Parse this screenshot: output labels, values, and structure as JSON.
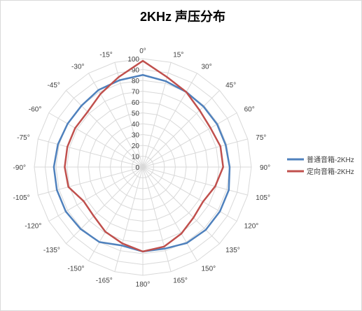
{
  "chart_data": {
    "type": "radar",
    "title": "2KHz 声压分布",
    "theta_labels": [
      "0°",
      "15°",
      "30°",
      "45°",
      "60°",
      "75°",
      "90°",
      "105°",
      "120°",
      "135°",
      "150°",
      "165°",
      "180°",
      "-165°",
      "-150°",
      "-135°",
      "-120°",
      "-105°",
      "-90°",
      "-75°",
      "-60°",
      "-45°",
      "-30°",
      "-15°"
    ],
    "r_ticks": [
      "0",
      "10",
      "20",
      "30",
      "40",
      "50",
      "60",
      "70",
      "80",
      "90",
      "100"
    ],
    "rlim": [
      0,
      100
    ],
    "grid": true,
    "legend_position": "right",
    "series": [
      {
        "name": "普通音箱-2KHz",
        "color": "#4f81bd",
        "values": [
          85,
          82,
          80,
          79,
          79,
          79,
          80,
          82,
          82,
          82,
          81,
          78,
          78,
          75,
          80,
          81,
          82,
          82,
          82,
          81,
          80,
          80,
          82,
          83
        ]
      },
      {
        "name": "定向音箱-2KHz",
        "color": "#c0504d",
        "values": [
          98,
          86,
          80,
          74,
          72,
          74,
          74,
          69,
          64,
          66,
          71,
          76,
          78,
          73,
          69,
          64,
          63,
          71,
          72,
          72,
          72,
          72,
          78,
          86
        ]
      }
    ]
  }
}
